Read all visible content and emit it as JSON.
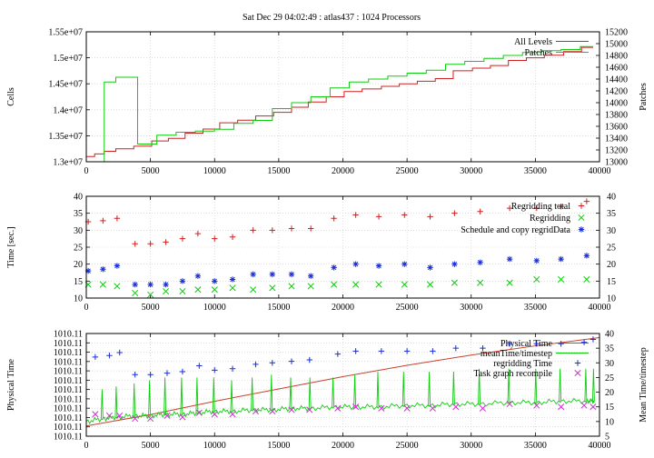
{
  "title": "Sat Dec 29 04:02:49 : atlas437 : 1024 Processors",
  "colors": {
    "red": "#d02020",
    "green": "#10cc10",
    "blue": "#1a2fd6",
    "magenta": "#cc33cc",
    "dark_red": "#c8412a"
  },
  "chart_data": [
    {
      "type": "line",
      "ylabel": "Cells",
      "y2label": "Patches",
      "xlim": [
        0,
        40000
      ],
      "ylim": [
        13000000,
        15500000
      ],
      "y2lim": [
        13000,
        15200
      ],
      "xticks": [
        "0",
        "5000",
        "10000",
        "15000",
        "20000",
        "25000",
        "30000",
        "35000",
        "40000"
      ],
      "yticks": [
        "1.3e+07",
        "1.35e+07",
        "1.4e+07",
        "1.45e+07",
        "1.5e+07",
        "1.55e+07"
      ],
      "y2ticks": [
        "13000",
        "13200",
        "13400",
        "13600",
        "13800",
        "14000",
        "14200",
        "14400",
        "14600",
        "14800",
        "15000",
        "15200"
      ],
      "legend_position": "top-right",
      "series": [
        {
          "name": "All Levels",
          "axis": "left",
          "color": "red",
          "step": true,
          "x": [
            0,
            650,
            1400,
            2300,
            3700,
            5100,
            6400,
            7700,
            9100,
            10400,
            11800,
            13200,
            14600,
            16000,
            17300,
            18700,
            20100,
            21500,
            23000,
            24400,
            25800,
            27200,
            28600,
            30100,
            31500,
            32900,
            34300,
            35700,
            37200,
            38600,
            39500
          ],
          "values": [
            13100000,
            13150000,
            13200000,
            13250000,
            13300000,
            13400000,
            13450000,
            13550000,
            13630000,
            13750000,
            13800000,
            13880000,
            13950000,
            14050000,
            14150000,
            14250000,
            14350000,
            14400000,
            14450000,
            14500000,
            14550000,
            14600000,
            14750000,
            14800000,
            14850000,
            14950000,
            15000000,
            15050000,
            15120000,
            15200000,
            15200000
          ]
        },
        {
          "name": "Patches",
          "axis": "right",
          "color": "green",
          "step": true,
          "x": [
            0,
            1400,
            2300,
            4000,
            5500,
            7000,
            8500,
            10000,
            11500,
            13000,
            14500,
            16000,
            17500,
            19000,
            20500,
            22000,
            23500,
            25000,
            26500,
            28000,
            29500,
            31000,
            32500,
            34000,
            35500,
            37000,
            38500,
            39500
          ],
          "values": [
            13000,
            14350,
            14430,
            13300,
            13450,
            13500,
            13520,
            13550,
            13650,
            13700,
            13900,
            14000,
            14100,
            14250,
            14350,
            14400,
            14450,
            14500,
            14550,
            14650,
            14700,
            14750,
            14800,
            14850,
            14880,
            14900,
            14950,
            14950
          ]
        }
      ]
    },
    {
      "type": "scatter",
      "ylabel": "Time [sec.]",
      "xlim": [
        0,
        40000
      ],
      "ylim": [
        10,
        40
      ],
      "xticks": [
        "0",
        "5000",
        "10000",
        "15000",
        "20000",
        "25000",
        "30000",
        "35000",
        "40000"
      ],
      "yticks": [
        "10",
        "15",
        "20",
        "25",
        "30",
        "35",
        "40"
      ],
      "legend_position": "top-right",
      "x": [
        150,
        1300,
        2400,
        3800,
        5000,
        6200,
        7500,
        8700,
        10000,
        11400,
        13000,
        14500,
        16000,
        17500,
        19300,
        21000,
        22800,
        24800,
        26800,
        28700,
        30700,
        33000,
        35100,
        37000,
        39000
      ],
      "series": [
        {
          "name": "Regridding total",
          "marker": "plus",
          "color": "red",
          "values": [
            32.5,
            32.8,
            33.5,
            26,
            26,
            26.5,
            27.5,
            29,
            27.5,
            28,
            30,
            30,
            30.5,
            30.5,
            33.5,
            34.5,
            34,
            34.5,
            34,
            35,
            35.5,
            36.5,
            36.5,
            37,
            38.5
          ]
        },
        {
          "name": "Regridding",
          "marker": "x",
          "color": "green",
          "values": [
            14,
            14,
            13.5,
            11.5,
            11,
            12,
            12,
            12.5,
            12.5,
            13,
            12.5,
            13,
            13.5,
            13.5,
            14,
            14,
            14,
            14,
            14,
            14.5,
            14.5,
            14.5,
            15.5,
            15.5,
            15.5
          ]
        },
        {
          "name": "Schedule and copy regridData",
          "marker": "star",
          "color": "blue",
          "values": [
            18,
            18.5,
            19.5,
            14,
            14,
            14,
            15,
            16.5,
            15,
            15.5,
            17,
            17,
            17,
            16.5,
            19,
            20,
            19.5,
            20,
            19,
            20,
            20.5,
            21.5,
            21,
            21.5,
            22.5
          ]
        }
      ]
    },
    {
      "type": "line",
      "ylabel": "Physical Time",
      "y2label": "Mean Time/timestep",
      "xlim": [
        0,
        40000
      ],
      "ylim": [
        0,
        1
      ],
      "y2lim": [
        5,
        40
      ],
      "xticks": [
        "0",
        "5000",
        "10000",
        "15000",
        "20000",
        "25000",
        "30000",
        "35000",
        "40000"
      ],
      "yticks": [
        "1010.11",
        "1010.11",
        "1010.11",
        "1010.11",
        "1010.11",
        "1010.11",
        "1010.11",
        "1010.11",
        "1010.11",
        "1010.11",
        "1010.11",
        "1010.11"
      ],
      "y2ticks": [
        "5",
        "10",
        "15",
        "20",
        "25",
        "30",
        "35",
        "40"
      ],
      "legend_position": "top-right",
      "series": [
        {
          "name": "Physical Time",
          "axis": "left",
          "color": "dark_red",
          "style": "line",
          "x": [
            0,
            5000,
            10000,
            15000,
            20000,
            25000,
            30000,
            35000,
            40000
          ],
          "values": [
            0.1,
            0.21,
            0.34,
            0.46,
            0.58,
            0.69,
            0.79,
            0.88,
            0.96
          ]
        },
        {
          "name": "meanTime/timestep",
          "axis": "right",
          "color": "green",
          "style": "line",
          "x": [
            0,
            1300,
            2400,
            3800,
            5000,
            6200,
            7500,
            8700,
            10000,
            11400,
            13000,
            14500,
            16000,
            17500,
            19300,
            21000,
            22800,
            24800,
            26800,
            28700,
            30700,
            33000,
            35100,
            37000,
            39000,
            39600
          ],
          "values": [
            10,
            11,
            11.5,
            12,
            12,
            12.5,
            12.5,
            13,
            13.5,
            13.5,
            14,
            14,
            14.5,
            14.5,
            15,
            15,
            15,
            15.5,
            15.5,
            16,
            16,
            16.5,
            16.5,
            17,
            17,
            17
          ],
          "spikes": [
            21,
            22,
            23,
            24,
            25,
            25,
            25,
            25,
            24,
            25,
            26,
            25,
            25,
            25,
            26,
            27,
            27,
            27,
            27,
            28,
            28,
            28,
            28,
            28,
            28,
            28
          ]
        },
        {
          "name": "regridding Time",
          "axis": "right",
          "color": "blue",
          "style": "plus",
          "x": [
            700,
            1800,
            2600,
            3800,
            5000,
            6300,
            7500,
            8800,
            10000,
            11400,
            13200,
            14500,
            16000,
            17400,
            19600,
            21000,
            23000,
            25000,
            27000,
            28800,
            30900,
            33000,
            35100,
            37000,
            38800,
            39500
          ],
          "values": [
            32,
            32.5,
            33.5,
            26,
            26,
            26.5,
            27,
            29,
            27.5,
            28,
            29.5,
            30,
            30.5,
            31,
            33,
            34,
            34,
            34,
            34,
            35,
            35,
            36.5,
            36.5,
            36.5,
            37,
            38
          ]
        },
        {
          "name": "Task graph recompile",
          "axis": "right",
          "color": "magenta",
          "style": "x",
          "x": [
            700,
            1800,
            2600,
            3800,
            5000,
            6300,
            7500,
            8800,
            10000,
            11400,
            13200,
            14500,
            16000,
            17400,
            19600,
            21000,
            23000,
            25000,
            27000,
            28800,
            30900,
            33000,
            35100,
            37000,
            38800,
            39500
          ],
          "values": [
            12.5,
            12,
            12,
            11,
            11,
            12,
            11.5,
            13,
            12.5,
            12.5,
            13.5,
            13.5,
            14,
            14,
            14.5,
            15,
            14.5,
            14.5,
            14.5,
            15,
            14.5,
            16,
            15.5,
            15,
            15.5,
            15
          ]
        }
      ]
    }
  ]
}
